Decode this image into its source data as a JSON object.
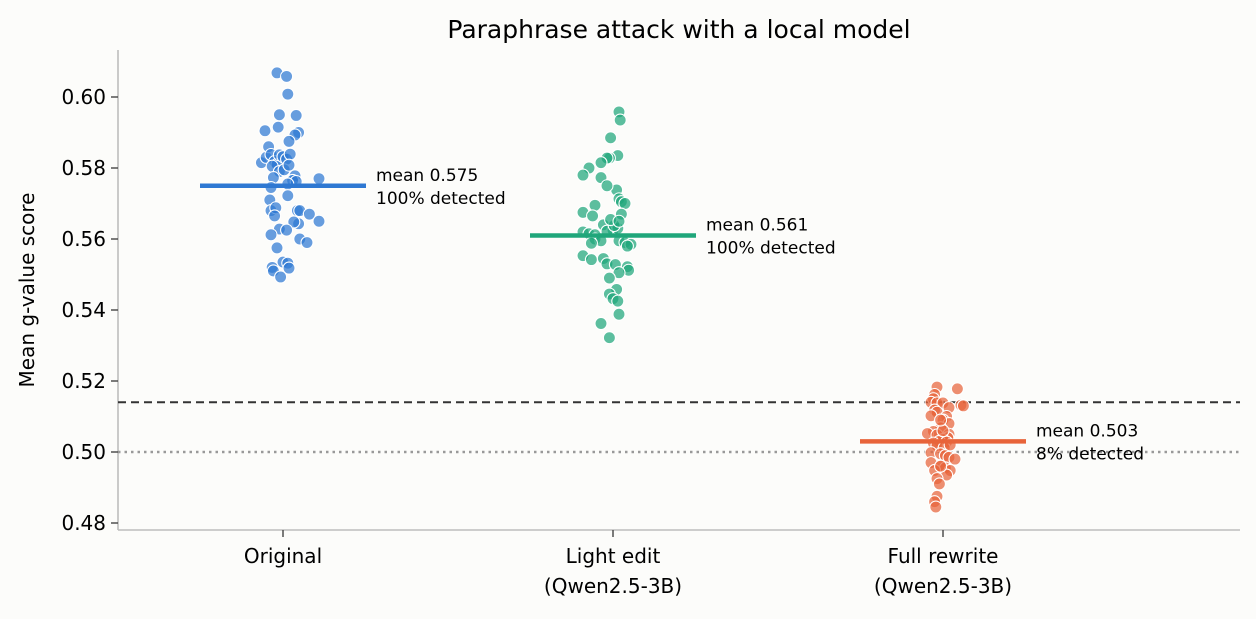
{
  "chart_data": {
    "type": "scatter",
    "title": "Paraphrase attack with a local model",
    "xlabel": "",
    "ylabel": "Mean g-value score",
    "ylim": [
      0.478,
      0.613
    ],
    "yticks": [
      "0.48",
      "0.50",
      "0.52",
      "0.54",
      "0.56",
      "0.58",
      "0.60"
    ],
    "grid": false,
    "categories": [
      [
        "Original"
      ],
      [
        "Light edit",
        "(Qwen2.5-3B)"
      ],
      [
        "Full rewrite",
        "(Qwen2.5-3B)"
      ]
    ],
    "colors": {
      "original": "#2e78d2",
      "light_edit": "#1fa67a",
      "full_rewrite": "#e8643a",
      "threshold_line": "#333333",
      "baseline_line": "#999999"
    },
    "reference_lines": [
      {
        "y": 0.514,
        "style": "dashed"
      },
      {
        "y": 0.5,
        "style": "dotted"
      }
    ],
    "series": [
      {
        "color": "#2e78d2",
        "mean": 0.575,
        "annotation": [
          "mean 0.575",
          "100% detected"
        ],
        "points": [
          [
            -0.18,
            0.5815
          ],
          [
            -0.14,
            0.583
          ],
          [
            -0.12,
            0.586
          ],
          [
            -0.15,
            0.5905
          ],
          [
            -0.1,
            0.5838
          ],
          [
            -0.07,
            0.5818
          ],
          [
            -0.05,
            0.581
          ],
          [
            -0.03,
            0.5837
          ],
          [
            0.0,
            0.5832
          ],
          [
            0.03,
            0.5825
          ],
          [
            0.06,
            0.5839
          ],
          [
            -0.09,
            0.5805
          ],
          [
            -0.03,
            0.579
          ],
          [
            0.01,
            0.5795
          ],
          [
            0.05,
            0.5808
          ],
          [
            0.13,
            0.59
          ],
          [
            0.1,
            0.5893
          ],
          [
            0.05,
            0.5875
          ],
          [
            -0.08,
            0.5773
          ],
          [
            0.1,
            0.5778
          ],
          [
            0.08,
            0.5765
          ],
          [
            0.11,
            0.5762
          ],
          [
            -0.1,
            0.5745
          ],
          [
            0.04,
            0.5755
          ],
          [
            0.3,
            0.577
          ],
          [
            -0.11,
            0.571
          ],
          [
            -0.1,
            0.568
          ],
          [
            -0.06,
            0.5688
          ],
          [
            0.04,
            0.5722
          ],
          [
            -0.07,
            0.5665
          ],
          [
            0.12,
            0.568
          ],
          [
            0.14,
            0.568
          ],
          [
            0.22,
            0.567
          ],
          [
            0.3,
            0.565
          ],
          [
            0.13,
            0.5643
          ],
          [
            0.09,
            0.5648
          ],
          [
            -0.03,
            0.5628
          ],
          [
            0.03,
            0.5625
          ],
          [
            -0.1,
            0.5612
          ],
          [
            0.14,
            0.56
          ],
          [
            0.2,
            0.559
          ],
          [
            -0.05,
            0.5575
          ],
          [
            0.0,
            0.5535
          ],
          [
            0.04,
            0.5532
          ],
          [
            -0.09,
            0.552
          ],
          [
            -0.08,
            0.551
          ],
          [
            0.05,
            0.5518
          ],
          [
            -0.02,
            0.5493
          ],
          [
            -0.05,
            0.6068
          ],
          [
            0.03,
            0.6058
          ],
          [
            0.04,
            0.6008
          ],
          [
            0.11,
            0.5948
          ],
          [
            -0.03,
            0.595
          ],
          [
            -0.04,
            0.5915
          ]
        ]
      },
      {
        "color": "#1fa67a",
        "mean": 0.561,
        "annotation": [
          "mean 0.561",
          "100% detected"
        ],
        "points": [
          [
            -0.02,
            0.5885
          ],
          [
            0.04,
            0.5835
          ],
          [
            -0.03,
            0.5828
          ],
          [
            -0.05,
            0.5828
          ],
          [
            -0.1,
            0.5815
          ],
          [
            -0.2,
            0.58
          ],
          [
            -0.25,
            0.578
          ],
          [
            -0.1,
            0.5773
          ],
          [
            0.03,
            0.5738
          ],
          [
            -0.05,
            0.575
          ],
          [
            0.05,
            0.5713
          ],
          [
            0.07,
            0.5705
          ],
          [
            0.1,
            0.57
          ],
          [
            -0.15,
            0.5695
          ],
          [
            0.07,
            0.567
          ],
          [
            -0.25,
            0.5675
          ],
          [
            -0.17,
            0.5665
          ],
          [
            -0.08,
            0.564
          ],
          [
            0.0,
            0.5625
          ],
          [
            -0.05,
            0.5622
          ],
          [
            -0.25,
            0.562
          ],
          [
            -0.2,
            0.5615
          ],
          [
            -0.15,
            0.5612
          ],
          [
            0.04,
            0.563
          ],
          [
            0.01,
            0.5638
          ],
          [
            -0.15,
            0.56
          ],
          [
            -0.1,
            0.5595
          ],
          [
            0.05,
            0.5595
          ],
          [
            0.1,
            0.559
          ],
          [
            0.15,
            0.5585
          ],
          [
            -0.18,
            0.5588
          ],
          [
            0.12,
            0.558
          ],
          [
            -0.25,
            0.5553
          ],
          [
            -0.18,
            0.5542
          ],
          [
            -0.08,
            0.5545
          ],
          [
            -0.05,
            0.553
          ],
          [
            0.02,
            0.5528
          ],
          [
            0.12,
            0.5522
          ],
          [
            0.13,
            0.5512
          ],
          [
            0.05,
            0.5505
          ],
          [
            -0.03,
            0.549
          ],
          [
            0.03,
            0.5458
          ],
          [
            -0.03,
            0.5445
          ],
          [
            0.0,
            0.5432
          ],
          [
            0.04,
            0.5425
          ],
          [
            0.05,
            0.5388
          ],
          [
            -0.1,
            0.5362
          ],
          [
            -0.03,
            0.5322
          ],
          [
            0.05,
            0.5958
          ],
          [
            0.06,
            0.5935
          ],
          [
            -0.02,
            0.5655
          ],
          [
            0.05,
            0.565
          ]
        ]
      },
      {
        "color": "#e8643a",
        "mean": 0.503,
        "annotation": [
          "mean 0.503",
          "8% detected"
        ],
        "points": [
          [
            -0.05,
            0.5183
          ],
          [
            0.12,
            0.5178
          ],
          [
            -0.07,
            0.5162
          ],
          [
            -0.08,
            0.515
          ],
          [
            -0.1,
            0.514
          ],
          [
            -0.05,
            0.5138
          ],
          [
            0.0,
            0.5138
          ],
          [
            0.15,
            0.5132
          ],
          [
            0.05,
            0.5125
          ],
          [
            0.17,
            0.513
          ],
          [
            -0.07,
            0.5118
          ],
          [
            -0.05,
            0.5112
          ],
          [
            -0.1,
            0.5102
          ],
          [
            0.03,
            0.51
          ],
          [
            0.0,
            0.509
          ],
          [
            0.05,
            0.508
          ],
          [
            -0.02,
            0.5068
          ],
          [
            -0.08,
            0.5058
          ],
          [
            -0.13,
            0.5052
          ],
          [
            0.05,
            0.505
          ],
          [
            -0.05,
            0.5048
          ],
          [
            0.04,
            0.504
          ],
          [
            0.0,
            0.5035
          ],
          [
            -0.03,
            0.503
          ],
          [
            0.03,
            0.5028
          ],
          [
            -0.08,
            0.5025
          ],
          [
            -0.05,
            0.5018
          ],
          [
            0.01,
            0.5012
          ],
          [
            -0.1,
            0.4998
          ],
          [
            -0.02,
            0.4995
          ],
          [
            0.02,
            0.499
          ],
          [
            0.05,
            0.4985
          ],
          [
            -0.1,
            0.497
          ],
          [
            0.1,
            0.498
          ],
          [
            -0.02,
            0.496
          ],
          [
            0.02,
            0.4955
          ],
          [
            0.06,
            0.4948
          ],
          [
            -0.07,
            0.4948
          ],
          [
            0.03,
            0.4935
          ],
          [
            -0.05,
            0.4925
          ],
          [
            -0.03,
            0.491
          ],
          [
            -0.05,
            0.4875
          ],
          [
            -0.07,
            0.486
          ],
          [
            -0.06,
            0.4845
          ],
          [
            -0.02,
            0.496
          ],
          [
            0.0,
            0.506
          ],
          [
            0.06,
            0.502
          ],
          [
            -0.02,
            0.509
          ]
        ]
      }
    ]
  }
}
